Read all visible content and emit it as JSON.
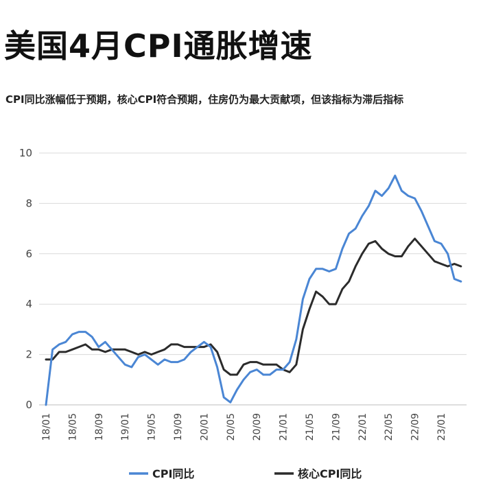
{
  "header": {
    "title": "美国4月CPI通胀增速",
    "subtitle": "CPI同比涨幅低于预期，核心CPI符合预期，住房仍为最大贡献项，但该指标为滞后指标"
  },
  "chart_data": {
    "type": "line",
    "title": "",
    "xlabel": "",
    "ylabel": "",
    "ylim": [
      0,
      10
    ],
    "yticks": [
      0,
      2,
      4,
      6,
      8,
      10
    ],
    "grid": true,
    "legend_position": "bottom",
    "x_tick_labels": [
      "18/01",
      "18/05",
      "18/09",
      "19/01",
      "19/05",
      "19/09",
      "20/01",
      "20/05",
      "20/09",
      "21/01",
      "21/05",
      "21/09",
      "22/01",
      "22/05",
      "22/09",
      "23/01"
    ],
    "x_tick_step_months": 4,
    "x": [
      "18/01",
      "18/02",
      "18/03",
      "18/04",
      "18/05",
      "18/06",
      "18/07",
      "18/08",
      "18/09",
      "18/10",
      "18/11",
      "18/12",
      "19/01",
      "19/02",
      "19/03",
      "19/04",
      "19/05",
      "19/06",
      "19/07",
      "19/08",
      "19/09",
      "19/10",
      "19/11",
      "19/12",
      "20/01",
      "20/02",
      "20/03",
      "20/04",
      "20/05",
      "20/06",
      "20/07",
      "20/08",
      "20/09",
      "20/10",
      "20/11",
      "20/12",
      "21/01",
      "21/02",
      "21/03",
      "21/04",
      "21/05",
      "21/06",
      "21/07",
      "21/08",
      "21/09",
      "21/10",
      "21/11",
      "21/12",
      "22/01",
      "22/02",
      "22/03",
      "22/04",
      "22/05",
      "22/06",
      "22/07",
      "22/08",
      "22/09",
      "22/10",
      "22/11",
      "22/12",
      "23/01",
      "23/02",
      "23/03",
      "23/04"
    ],
    "series": [
      {
        "name": "CPI同比",
        "color": "#4a86d4",
        "values": [
          0.0,
          2.2,
          2.4,
          2.5,
          2.8,
          2.9,
          2.9,
          2.7,
          2.3,
          2.5,
          2.2,
          1.9,
          1.6,
          1.5,
          1.9,
          2.0,
          1.8,
          1.6,
          1.8,
          1.7,
          1.7,
          1.8,
          2.1,
          2.3,
          2.5,
          2.3,
          1.5,
          0.3,
          0.1,
          0.6,
          1.0,
          1.3,
          1.4,
          1.2,
          1.2,
          1.4,
          1.4,
          1.7,
          2.6,
          4.2,
          5.0,
          5.4,
          5.4,
          5.3,
          5.4,
          6.2,
          6.8,
          7.0,
          7.5,
          7.9,
          8.5,
          8.3,
          8.6,
          9.1,
          8.5,
          8.3,
          8.2,
          7.7,
          7.1,
          6.5,
          6.4,
          6.0,
          5.0,
          4.9
        ]
      },
      {
        "name": "核心CPI同比",
        "color": "#2b2b2b",
        "values": [
          1.8,
          1.8,
          2.1,
          2.1,
          2.2,
          2.3,
          2.4,
          2.2,
          2.2,
          2.1,
          2.2,
          2.2,
          2.2,
          2.1,
          2.0,
          2.1,
          2.0,
          2.1,
          2.2,
          2.4,
          2.4,
          2.3,
          2.3,
          2.3,
          2.3,
          2.4,
          2.1,
          1.4,
          1.2,
          1.2,
          1.6,
          1.7,
          1.7,
          1.6,
          1.6,
          1.6,
          1.4,
          1.3,
          1.6,
          3.0,
          3.8,
          4.5,
          4.3,
          4.0,
          4.0,
          4.6,
          4.9,
          5.5,
          6.0,
          6.4,
          6.5,
          6.2,
          6.0,
          5.9,
          5.9,
          6.3,
          6.6,
          6.3,
          6.0,
          5.7,
          5.6,
          5.5,
          5.6,
          5.5
        ]
      }
    ]
  }
}
